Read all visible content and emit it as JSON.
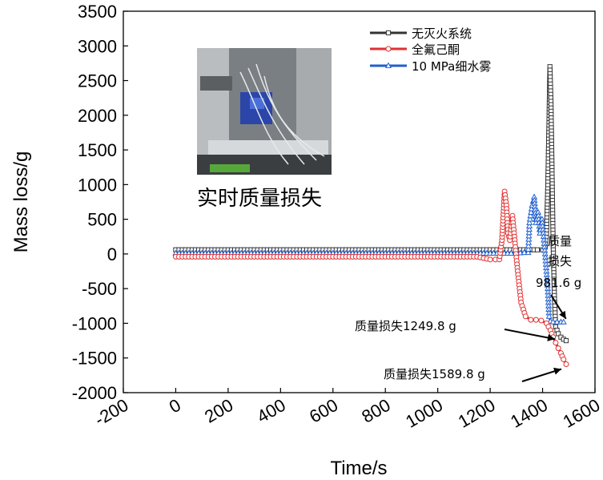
{
  "chart_data": {
    "type": "line",
    "xlabel": "Time/s",
    "ylabel": "Mass loss/g",
    "xlim": [
      -200,
      1600
    ],
    "ylim": [
      -2000,
      3500
    ],
    "xticks": [
      "-200",
      "0",
      "200",
      "400",
      "600",
      "800",
      "1000",
      "1200",
      "1400",
      "1600"
    ],
    "yticks": [
      "3500",
      "3000",
      "2500",
      "2000",
      "1500",
      "1000",
      "500",
      "0",
      "-500",
      "-1000",
      "-1500",
      "-2000"
    ],
    "legend_position": "top-right",
    "series": [
      {
        "name": "无灭火系统",
        "color": "#333333",
        "marker": "square",
        "x": [
          0,
          200,
          400,
          600,
          800,
          1000,
          1200,
          1380,
          1400,
          1410,
          1415,
          1420,
          1425,
          1428,
          1432,
          1436,
          1440,
          1445,
          1450,
          1460,
          1470,
          1480,
          1490
        ],
        "y": [
          60,
          60,
          60,
          60,
          60,
          60,
          60,
          60,
          60,
          100,
          300,
          1000,
          2000,
          2700,
          2200,
          1200,
          200,
          -600,
          -1050,
          -1150,
          -1200,
          -1230,
          -1250
        ]
      },
      {
        "name": "全氟己酮",
        "color": "#e03030",
        "marker": "circle",
        "x": [
          0,
          200,
          400,
          600,
          800,
          1000,
          1150,
          1200,
          1220,
          1235,
          1245,
          1255,
          1262,
          1268,
          1275,
          1285,
          1295,
          1305,
          1318,
          1335,
          1355,
          1375,
          1395,
          1415,
          1430,
          1440,
          1450,
          1460,
          1470,
          1480,
          1490
        ],
        "y": [
          -40,
          -40,
          -40,
          -40,
          -40,
          -40,
          -40,
          -80,
          -80,
          -80,
          200,
          900,
          700,
          300,
          200,
          550,
          150,
          -250,
          -700,
          -900,
          -950,
          -950,
          -960,
          -1000,
          -1100,
          -1200,
          -1280,
          -1360,
          -1430,
          -1520,
          -1590
        ]
      },
      {
        "name": "10 MPa细水雾",
        "color": "#1f5fd0",
        "marker": "triangle",
        "x": [
          0,
          200,
          400,
          600,
          800,
          1000,
          1200,
          1280,
          1300,
          1330,
          1345,
          1350,
          1360,
          1368,
          1375,
          1383,
          1390,
          1398,
          1405,
          1412,
          1420,
          1425,
          1430,
          1440,
          1455,
          1470,
          1480
        ],
        "y": [
          10,
          10,
          10,
          10,
          10,
          10,
          10,
          10,
          10,
          20,
          20,
          450,
          700,
          820,
          450,
          600,
          300,
          500,
          200,
          -100,
          -500,
          -900,
          -970,
          -980,
          -982,
          -982,
          -982
        ]
      }
    ],
    "annotations": [
      {
        "text": "质量损失1249.8 g",
        "x": 1490,
        "y": -1250
      },
      {
        "text": "质量损失1589.8 g",
        "x": 1490,
        "y": -1590
      }
    ],
    "annotation_multiline": {
      "lines": [
        "质量",
        "损失",
        "981.6 g"
      ],
      "x": 1480,
      "y": -982
    },
    "inset_caption": "实时质量损失"
  }
}
